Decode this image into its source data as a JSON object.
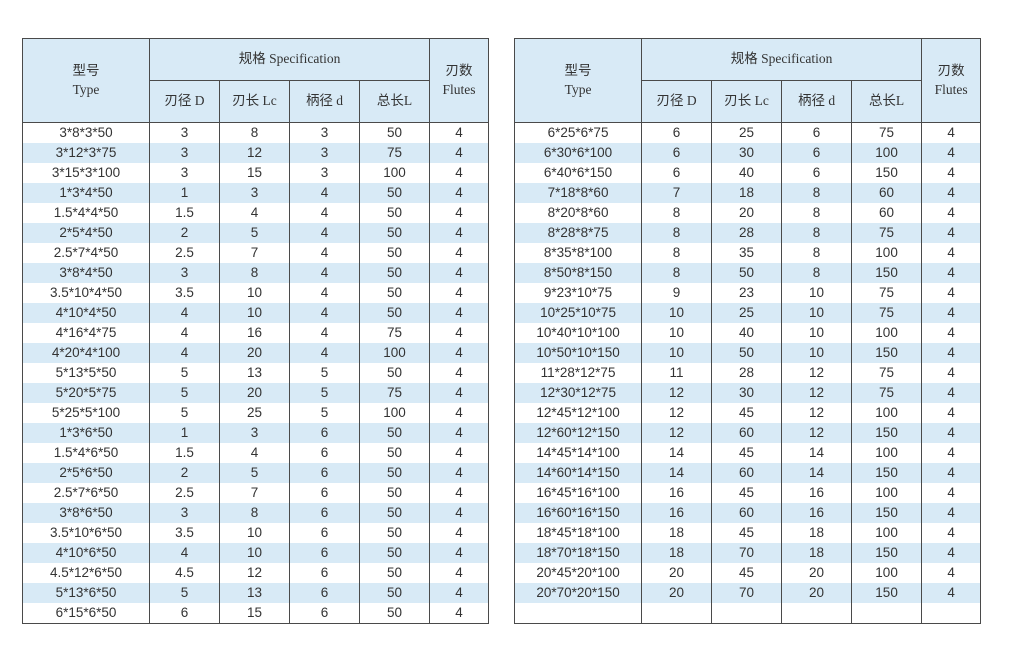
{
  "colors": {
    "stripe": "#d8eaf6",
    "header_bg": "#d8eaf6",
    "border": "#4a4a4a",
    "text": "#333333",
    "page_bg": "#ffffff"
  },
  "header": {
    "type_zh": "型号",
    "type_en": "Type",
    "spec": "规格 Specification",
    "sub": [
      "刃径 D",
      "刃长 Lc",
      "柄径 d",
      "总长L"
    ],
    "flutes_zh": "刃数",
    "flutes_en": "Flutes"
  },
  "tables": [
    {
      "rows": [
        [
          "3*8*3*50",
          "3",
          "8",
          "3",
          "50",
          "4"
        ],
        [
          "3*12*3*75",
          "3",
          "12",
          "3",
          "75",
          "4"
        ],
        [
          "3*15*3*100",
          "3",
          "15",
          "3",
          "100",
          "4"
        ],
        [
          "1*3*4*50",
          "1",
          "3",
          "4",
          "50",
          "4"
        ],
        [
          "1.5*4*4*50",
          "1.5",
          "4",
          "4",
          "50",
          "4"
        ],
        [
          "2*5*4*50",
          "2",
          "5",
          "4",
          "50",
          "4"
        ],
        [
          "2.5*7*4*50",
          "2.5",
          "7",
          "4",
          "50",
          "4"
        ],
        [
          "3*8*4*50",
          "3",
          "8",
          "4",
          "50",
          "4"
        ],
        [
          "3.5*10*4*50",
          "3.5",
          "10",
          "4",
          "50",
          "4"
        ],
        [
          "4*10*4*50",
          "4",
          "10",
          "4",
          "50",
          "4"
        ],
        [
          "4*16*4*75",
          "4",
          "16",
          "4",
          "75",
          "4"
        ],
        [
          "4*20*4*100",
          "4",
          "20",
          "4",
          "100",
          "4"
        ],
        [
          "5*13*5*50",
          "5",
          "13",
          "5",
          "50",
          "4"
        ],
        [
          "5*20*5*75",
          "5",
          "20",
          "5",
          "75",
          "4"
        ],
        [
          "5*25*5*100",
          "5",
          "25",
          "5",
          "100",
          "4"
        ],
        [
          "1*3*6*50",
          "1",
          "3",
          "6",
          "50",
          "4"
        ],
        [
          "1.5*4*6*50",
          "1.5",
          "4",
          "6",
          "50",
          "4"
        ],
        [
          "2*5*6*50",
          "2",
          "5",
          "6",
          "50",
          "4"
        ],
        [
          "2.5*7*6*50",
          "2.5",
          "7",
          "6",
          "50",
          "4"
        ],
        [
          "3*8*6*50",
          "3",
          "8",
          "6",
          "50",
          "4"
        ],
        [
          "3.5*10*6*50",
          "3.5",
          "10",
          "6",
          "50",
          "4"
        ],
        [
          "4*10*6*50",
          "4",
          "10",
          "6",
          "50",
          "4"
        ],
        [
          "4.5*12*6*50",
          "4.5",
          "12",
          "6",
          "50",
          "4"
        ],
        [
          "5*13*6*50",
          "5",
          "13",
          "6",
          "50",
          "4"
        ],
        [
          "6*15*6*50",
          "6",
          "15",
          "6",
          "50",
          "4"
        ]
      ]
    },
    {
      "rows": [
        [
          "6*25*6*75",
          "6",
          "25",
          "6",
          "75",
          "4"
        ],
        [
          "6*30*6*100",
          "6",
          "30",
          "6",
          "100",
          "4"
        ],
        [
          "6*40*6*150",
          "6",
          "40",
          "6",
          "150",
          "4"
        ],
        [
          "7*18*8*60",
          "7",
          "18",
          "8",
          "60",
          "4"
        ],
        [
          "8*20*8*60",
          "8",
          "20",
          "8",
          "60",
          "4"
        ],
        [
          "8*28*8*75",
          "8",
          "28",
          "8",
          "75",
          "4"
        ],
        [
          "8*35*8*100",
          "8",
          "35",
          "8",
          "100",
          "4"
        ],
        [
          "8*50*8*150",
          "8",
          "50",
          "8",
          "150",
          "4"
        ],
        [
          "9*23*10*75",
          "9",
          "23",
          "10",
          "75",
          "4"
        ],
        [
          "10*25*10*75",
          "10",
          "25",
          "10",
          "75",
          "4"
        ],
        [
          "10*40*10*100",
          "10",
          "40",
          "10",
          "100",
          "4"
        ],
        [
          "10*50*10*150",
          "10",
          "50",
          "10",
          "150",
          "4"
        ],
        [
          "11*28*12*75",
          "11",
          "28",
          "12",
          "75",
          "4"
        ],
        [
          "12*30*12*75",
          "12",
          "30",
          "12",
          "75",
          "4"
        ],
        [
          "12*45*12*100",
          "12",
          "45",
          "12",
          "100",
          "4"
        ],
        [
          "12*60*12*150",
          "12",
          "60",
          "12",
          "150",
          "4"
        ],
        [
          "14*45*14*100",
          "14",
          "45",
          "14",
          "100",
          "4"
        ],
        [
          "14*60*14*150",
          "14",
          "60",
          "14",
          "150",
          "4"
        ],
        [
          "16*45*16*100",
          "16",
          "45",
          "16",
          "100",
          "4"
        ],
        [
          "16*60*16*150",
          "16",
          "60",
          "16",
          "150",
          "4"
        ],
        [
          "18*45*18*100",
          "18",
          "45",
          "18",
          "100",
          "4"
        ],
        [
          "18*70*18*150",
          "18",
          "70",
          "18",
          "150",
          "4"
        ],
        [
          "20*45*20*100",
          "20",
          "45",
          "20",
          "100",
          "4"
        ],
        [
          "20*70*20*150",
          "20",
          "70",
          "20",
          "150",
          "4"
        ],
        [
          "",
          "",
          "",
          "",
          "",
          ""
        ]
      ]
    }
  ]
}
